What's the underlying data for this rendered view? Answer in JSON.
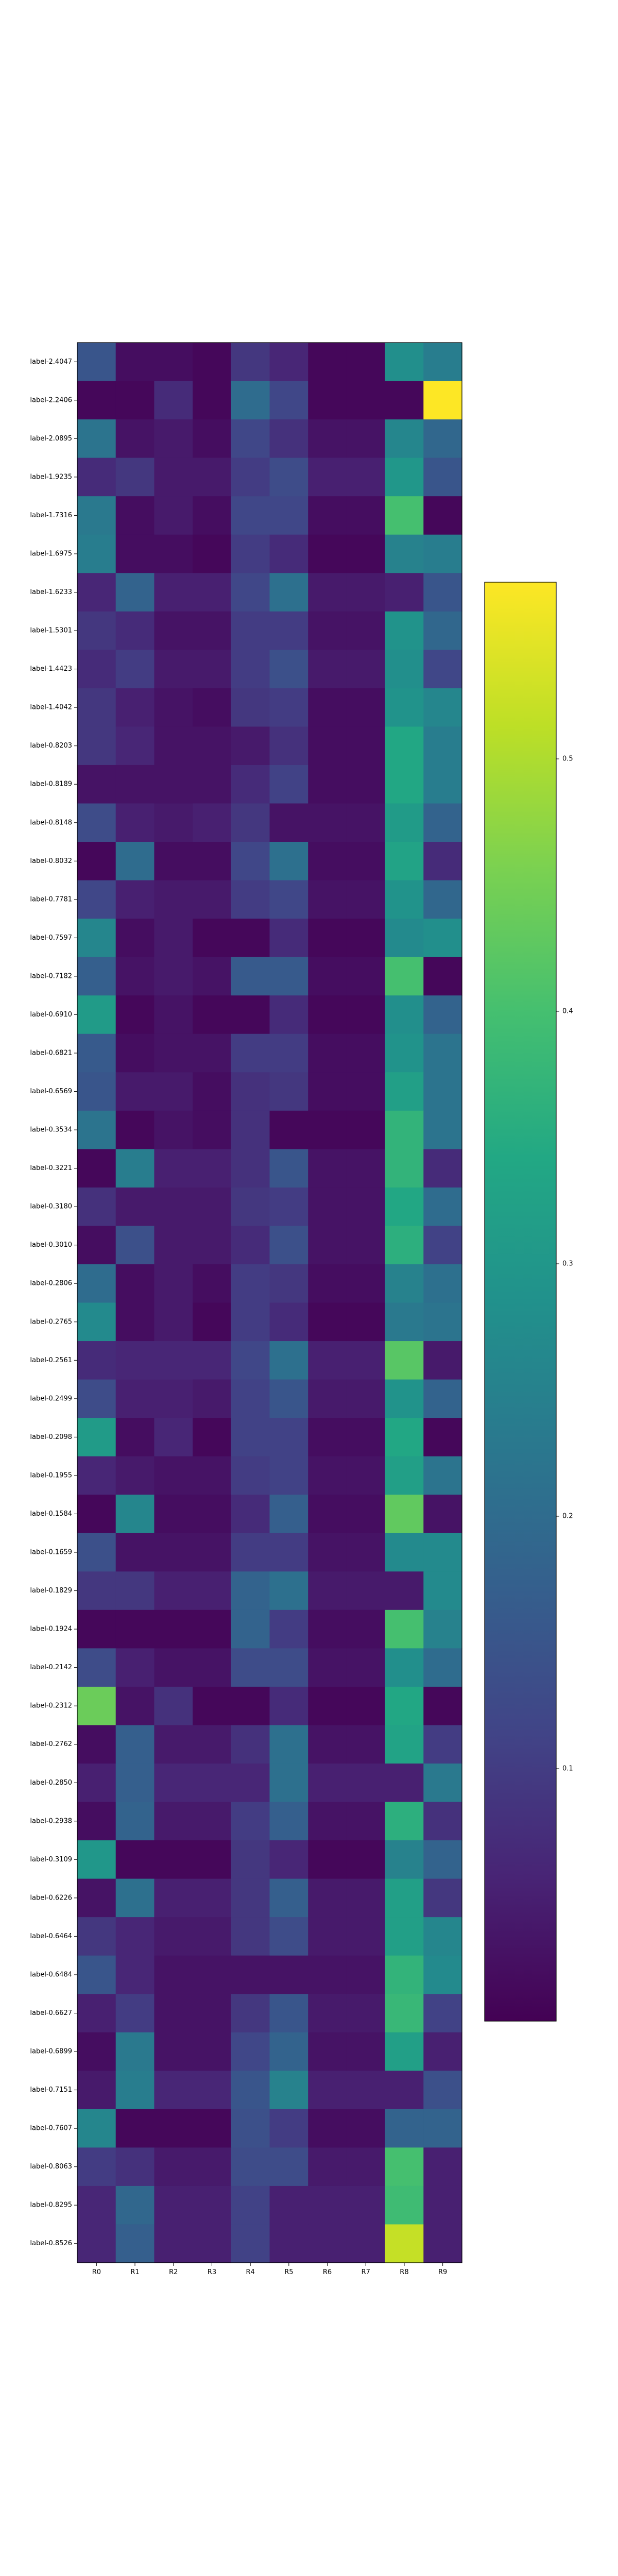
{
  "chart_data": {
    "type": "heatmap",
    "title": "",
    "xlabel": "",
    "ylabel": "",
    "colormap": "viridis",
    "color_range": [
      0.0,
      0.57
    ],
    "colorbar": {
      "ticks": [
        0.1,
        0.2,
        0.3,
        0.4,
        0.5
      ],
      "tick_labels": [
        "0.1",
        "0.2",
        "0.3",
        "0.4",
        "0.5"
      ]
    },
    "columns": [
      "R0",
      "R1",
      "R2",
      "R3",
      "R4",
      "R5",
      "R6",
      "R7",
      "R8",
      "R9"
    ],
    "rows": [
      "label-2.4047",
      "label-2.2406",
      "label-2.0895",
      "label-1.9235",
      "label-1.7316",
      "label-1.6975",
      "label-1.6233",
      "label-1.5301",
      "label-1.4423",
      "label-1.4042",
      "label-0.8203",
      "label-0.8189",
      "label-0.8148",
      "label-0.8032",
      "label-0.7781",
      "label-0.7597",
      "label-0.7182",
      "label-0.6910",
      "label-0.6821",
      "label-0.6569",
      "label-0.3534",
      "label-0.3221",
      "label-0.3180",
      "label-0.3010",
      "label-0.2806",
      "label-0.2765",
      "label-0.2561",
      "label-0.2499",
      "label-0.2098",
      "label-0.1955",
      "label-0.1584",
      "label-0.1659",
      "label-0.1829",
      "label-0.1924",
      "label-0.2142",
      "label-0.2312",
      "label-0.2762",
      "label-0.2850",
      "label-0.2938",
      "label-0.3109",
      "label-0.6226",
      "label-0.6464",
      "label-0.6484",
      "label-0.6627",
      "label-0.6899",
      "label-0.7151",
      "label-0.7607",
      "label-0.8063",
      "label-0.8295",
      "label-0.8526"
    ],
    "values": [
      [
        0.15,
        0.02,
        0.02,
        0.01,
        0.09,
        0.06,
        0.01,
        0.01,
        0.28,
        0.24
      ],
      [
        0.01,
        0.01,
        0.07,
        0.01,
        0.2,
        0.12,
        0.01,
        0.01,
        0.01,
        0.57
      ],
      [
        0.22,
        0.03,
        0.04,
        0.02,
        0.12,
        0.08,
        0.03,
        0.03,
        0.26,
        0.19
      ],
      [
        0.07,
        0.09,
        0.04,
        0.04,
        0.1,
        0.13,
        0.05,
        0.05,
        0.3,
        0.15
      ],
      [
        0.23,
        0.02,
        0.04,
        0.02,
        0.12,
        0.12,
        0.02,
        0.02,
        0.4,
        0.01
      ],
      [
        0.24,
        0.02,
        0.02,
        0.01,
        0.1,
        0.07,
        0.01,
        0.01,
        0.25,
        0.24
      ],
      [
        0.06,
        0.18,
        0.05,
        0.05,
        0.12,
        0.21,
        0.04,
        0.04,
        0.05,
        0.15
      ],
      [
        0.09,
        0.07,
        0.03,
        0.03,
        0.1,
        0.1,
        0.03,
        0.03,
        0.29,
        0.19
      ],
      [
        0.07,
        0.1,
        0.04,
        0.04,
        0.1,
        0.14,
        0.04,
        0.04,
        0.28,
        0.12
      ],
      [
        0.09,
        0.05,
        0.03,
        0.02,
        0.09,
        0.1,
        0.02,
        0.02,
        0.29,
        0.26
      ],
      [
        0.09,
        0.06,
        0.03,
        0.03,
        0.04,
        0.08,
        0.02,
        0.02,
        0.34,
        0.24
      ],
      [
        0.03,
        0.03,
        0.03,
        0.03,
        0.07,
        0.11,
        0.02,
        0.02,
        0.34,
        0.24
      ],
      [
        0.13,
        0.05,
        0.04,
        0.05,
        0.09,
        0.03,
        0.03,
        0.03,
        0.31,
        0.18
      ],
      [
        0.01,
        0.2,
        0.02,
        0.02,
        0.12,
        0.21,
        0.02,
        0.02,
        0.33,
        0.07
      ],
      [
        0.12,
        0.05,
        0.04,
        0.04,
        0.1,
        0.12,
        0.03,
        0.03,
        0.29,
        0.19
      ],
      [
        0.26,
        0.02,
        0.04,
        0.01,
        0.01,
        0.07,
        0.01,
        0.01,
        0.27,
        0.28
      ],
      [
        0.17,
        0.03,
        0.04,
        0.03,
        0.16,
        0.16,
        0.02,
        0.02,
        0.4,
        0.01
      ],
      [
        0.31,
        0.01,
        0.03,
        0.01,
        0.01,
        0.07,
        0.01,
        0.01,
        0.28,
        0.18
      ],
      [
        0.16,
        0.02,
        0.03,
        0.03,
        0.1,
        0.1,
        0.02,
        0.02,
        0.29,
        0.22
      ],
      [
        0.15,
        0.04,
        0.04,
        0.02,
        0.08,
        0.09,
        0.02,
        0.02,
        0.32,
        0.22
      ],
      [
        0.22,
        0.01,
        0.03,
        0.02,
        0.08,
        0.01,
        0.01,
        0.01,
        0.37,
        0.22
      ],
      [
        0.01,
        0.24,
        0.05,
        0.05,
        0.08,
        0.15,
        0.03,
        0.03,
        0.37,
        0.07
      ],
      [
        0.08,
        0.04,
        0.04,
        0.04,
        0.09,
        0.1,
        0.03,
        0.03,
        0.34,
        0.2
      ],
      [
        0.02,
        0.14,
        0.04,
        0.04,
        0.07,
        0.14,
        0.03,
        0.03,
        0.36,
        0.11
      ],
      [
        0.2,
        0.02,
        0.04,
        0.02,
        0.1,
        0.09,
        0.02,
        0.02,
        0.25,
        0.21
      ],
      [
        0.27,
        0.02,
        0.04,
        0.01,
        0.1,
        0.07,
        0.01,
        0.01,
        0.23,
        0.22
      ],
      [
        0.07,
        0.06,
        0.06,
        0.06,
        0.12,
        0.21,
        0.05,
        0.05,
        0.42,
        0.04
      ],
      [
        0.13,
        0.05,
        0.05,
        0.04,
        0.11,
        0.15,
        0.04,
        0.04,
        0.29,
        0.18
      ],
      [
        0.31,
        0.02,
        0.06,
        0.01,
        0.11,
        0.11,
        0.02,
        0.02,
        0.34,
        0.01
      ],
      [
        0.06,
        0.04,
        0.03,
        0.03,
        0.1,
        0.11,
        0.03,
        0.03,
        0.32,
        0.22
      ],
      [
        0.01,
        0.26,
        0.02,
        0.02,
        0.07,
        0.17,
        0.02,
        0.02,
        0.43,
        0.03
      ],
      [
        0.14,
        0.03,
        0.03,
        0.03,
        0.1,
        0.1,
        0.03,
        0.03,
        0.27,
        0.27
      ],
      [
        0.09,
        0.09,
        0.05,
        0.05,
        0.18,
        0.21,
        0.04,
        0.04,
        0.04,
        0.27
      ],
      [
        0.01,
        0.01,
        0.01,
        0.01,
        0.18,
        0.1,
        0.02,
        0.02,
        0.4,
        0.25
      ],
      [
        0.13,
        0.05,
        0.03,
        0.03,
        0.13,
        0.13,
        0.03,
        0.03,
        0.28,
        0.2
      ],
      [
        0.44,
        0.03,
        0.08,
        0.01,
        0.01,
        0.07,
        0.01,
        0.01,
        0.34,
        0.01
      ],
      [
        0.02,
        0.17,
        0.04,
        0.04,
        0.08,
        0.21,
        0.03,
        0.03,
        0.33,
        0.1
      ],
      [
        0.05,
        0.17,
        0.06,
        0.06,
        0.06,
        0.21,
        0.05,
        0.05,
        0.05,
        0.23
      ],
      [
        0.02,
        0.18,
        0.04,
        0.04,
        0.1,
        0.17,
        0.03,
        0.03,
        0.36,
        0.08
      ],
      [
        0.3,
        0.01,
        0.01,
        0.01,
        0.09,
        0.06,
        0.01,
        0.01,
        0.25,
        0.18
      ],
      [
        0.03,
        0.21,
        0.05,
        0.05,
        0.09,
        0.17,
        0.04,
        0.04,
        0.32,
        0.09
      ],
      [
        0.09,
        0.06,
        0.04,
        0.04,
        0.09,
        0.13,
        0.04,
        0.04,
        0.32,
        0.26
      ],
      [
        0.15,
        0.06,
        0.03,
        0.03,
        0.03,
        0.03,
        0.03,
        0.03,
        0.37,
        0.27
      ],
      [
        0.05,
        0.1,
        0.03,
        0.03,
        0.09,
        0.15,
        0.04,
        0.04,
        0.38,
        0.11
      ],
      [
        0.02,
        0.23,
        0.03,
        0.03,
        0.12,
        0.18,
        0.03,
        0.03,
        0.32,
        0.05
      ],
      [
        0.04,
        0.24,
        0.06,
        0.06,
        0.15,
        0.25,
        0.05,
        0.05,
        0.05,
        0.14
      ],
      [
        0.26,
        0.01,
        0.01,
        0.01,
        0.14,
        0.1,
        0.02,
        0.02,
        0.18,
        0.18
      ],
      [
        0.1,
        0.08,
        0.04,
        0.04,
        0.13,
        0.13,
        0.04,
        0.04,
        0.4,
        0.05
      ],
      [
        0.06,
        0.19,
        0.05,
        0.05,
        0.11,
        0.05,
        0.05,
        0.05,
        0.39,
        0.05
      ],
      [
        0.06,
        0.17,
        0.05,
        0.05,
        0.11,
        0.05,
        0.05,
        0.05,
        0.52,
        0.05
      ]
    ]
  }
}
